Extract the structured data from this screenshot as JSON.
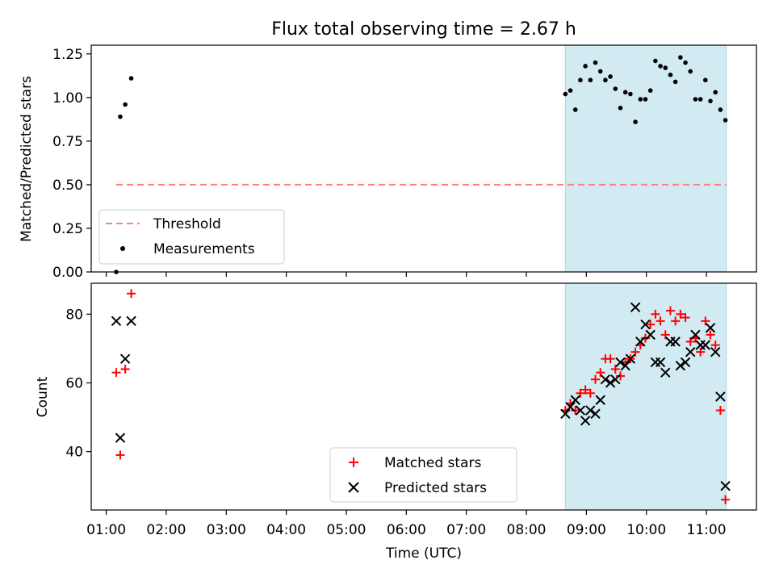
{
  "title": "Flux total observing time = 2.67 h",
  "colors": {
    "threshold": "#ff7f7f",
    "measurement": "#000000",
    "matched": "#ff0000",
    "predicted": "#000000",
    "highlight": "#add8e6"
  },
  "chart_data": [
    {
      "type": "scatter",
      "ylabel": "Matched/Predicted stars",
      "ylim": [
        0,
        1.3
      ],
      "xlim": [
        "00:45",
        "11:50"
      ],
      "yticks": [
        "0.00",
        "0.25",
        "0.50",
        "0.75",
        "1.00",
        "1.25"
      ],
      "highlight_span": [
        "08:39",
        "11:20"
      ],
      "legend_position": "lower-left",
      "threshold": {
        "name": "Threshold",
        "y": 0.5,
        "x": [
          "01:10",
          "11:20"
        ],
        "style": "dashed"
      },
      "series": [
        {
          "name": "Measurements",
          "marker": "dot",
          "points": [
            [
              "01:10",
              0.0
            ],
            [
              "01:14",
              0.89
            ],
            [
              "01:19",
              0.96
            ],
            [
              "01:25",
              1.11
            ],
            [
              "08:39",
              1.02
            ],
            [
              "08:44",
              1.04
            ],
            [
              "08:49",
              0.93
            ],
            [
              "08:54",
              1.1
            ],
            [
              "08:59",
              1.18
            ],
            [
              "09:04",
              1.1
            ],
            [
              "09:09",
              1.2
            ],
            [
              "09:14",
              1.15
            ],
            [
              "09:19",
              1.1
            ],
            [
              "09:24",
              1.12
            ],
            [
              "09:29",
              1.05
            ],
            [
              "09:34",
              0.94
            ],
            [
              "09:39",
              1.03
            ],
            [
              "09:44",
              1.02
            ],
            [
              "09:49",
              0.86
            ],
            [
              "09:54",
              0.99
            ],
            [
              "09:59",
              0.99
            ],
            [
              "10:04",
              1.04
            ],
            [
              "10:09",
              1.21
            ],
            [
              "10:14",
              1.18
            ],
            [
              "10:19",
              1.17
            ],
            [
              "10:24",
              1.13
            ],
            [
              "10:29",
              1.09
            ],
            [
              "10:34",
              1.23
            ],
            [
              "10:39",
              1.2
            ],
            [
              "10:44",
              1.15
            ],
            [
              "10:49",
              0.99
            ],
            [
              "10:54",
              0.99
            ],
            [
              "10:59",
              1.1
            ],
            [
              "11:04",
              0.98
            ],
            [
              "11:09",
              1.03
            ],
            [
              "11:14",
              0.93
            ],
            [
              "11:19",
              0.87
            ]
          ]
        }
      ]
    },
    {
      "type": "scatter",
      "ylabel": "Count",
      "xlabel": "Time (UTC)",
      "ylim": [
        23,
        89
      ],
      "xlim": [
        "00:45",
        "11:50"
      ],
      "yticks": [
        "40",
        "60",
        "80"
      ],
      "xticks": [
        "01:00",
        "02:00",
        "03:00",
        "04:00",
        "05:00",
        "06:00",
        "07:00",
        "08:00",
        "09:00",
        "10:00",
        "11:00"
      ],
      "highlight_span": [
        "08:39",
        "11:20"
      ],
      "legend_position": "lower-center",
      "series": [
        {
          "name": "Matched stars",
          "marker": "plus",
          "points": [
            [
              "01:10",
              63
            ],
            [
              "01:14",
              39
            ],
            [
              "01:19",
              64
            ],
            [
              "01:25",
              86
            ],
            [
              "08:39",
              52
            ],
            [
              "08:44",
              54
            ],
            [
              "08:49",
              52
            ],
            [
              "08:54",
              57
            ],
            [
              "08:59",
              58
            ],
            [
              "09:04",
              57
            ],
            [
              "09:09",
              61
            ],
            [
              "09:14",
              63
            ],
            [
              "09:19",
              67
            ],
            [
              "09:24",
              67
            ],
            [
              "09:29",
              64
            ],
            [
              "09:34",
              62
            ],
            [
              "09:39",
              66
            ],
            [
              "09:44",
              67
            ],
            [
              "09:49",
              69
            ],
            [
              "09:54",
              71
            ],
            [
              "09:59",
              73
            ],
            [
              "10:04",
              77
            ],
            [
              "10:09",
              80
            ],
            [
              "10:14",
              78
            ],
            [
              "10:19",
              74
            ],
            [
              "10:24",
              81
            ],
            [
              "10:29",
              78
            ],
            [
              "10:34",
              80
            ],
            [
              "10:39",
              79
            ],
            [
              "10:44",
              72
            ],
            [
              "10:49",
              73
            ],
            [
              "10:54",
              69
            ],
            [
              "10:59",
              78
            ],
            [
              "11:04",
              74
            ],
            [
              "11:09",
              71
            ],
            [
              "11:14",
              52
            ],
            [
              "11:19",
              26
            ]
          ]
        },
        {
          "name": "Predicted stars",
          "marker": "x",
          "points": [
            [
              "01:10",
              78
            ],
            [
              "01:14",
              44
            ],
            [
              "01:19",
              67
            ],
            [
              "01:25",
              78
            ],
            [
              "08:39",
              51
            ],
            [
              "08:44",
              53
            ],
            [
              "08:49",
              55
            ],
            [
              "08:54",
              52
            ],
            [
              "08:59",
              49
            ],
            [
              "09:04",
              52
            ],
            [
              "09:09",
              51
            ],
            [
              "09:14",
              55
            ],
            [
              "09:19",
              61
            ],
            [
              "09:24",
              60
            ],
            [
              "09:29",
              61
            ],
            [
              "09:34",
              66
            ],
            [
              "09:39",
              65
            ],
            [
              "09:44",
              67
            ],
            [
              "09:49",
              82
            ],
            [
              "09:54",
              72
            ],
            [
              "09:59",
              77
            ],
            [
              "10:04",
              74
            ],
            [
              "10:09",
              66
            ],
            [
              "10:14",
              66
            ],
            [
              "10:19",
              63
            ],
            [
              "10:24",
              72
            ],
            [
              "10:29",
              72
            ],
            [
              "10:34",
              65
            ],
            [
              "10:39",
              66
            ],
            [
              "10:44",
              69
            ],
            [
              "10:49",
              74
            ],
            [
              "10:54",
              71
            ],
            [
              "10:59",
              71
            ],
            [
              "11:04",
              76
            ],
            [
              "11:09",
              69
            ],
            [
              "11:14",
              56
            ],
            [
              "11:19",
              30
            ]
          ]
        }
      ]
    }
  ]
}
